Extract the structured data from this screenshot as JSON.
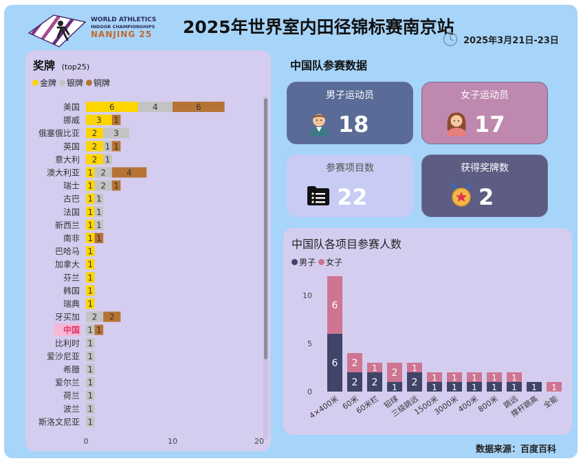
{
  "header": {
    "logo_line1": "WORLD ATHLETICS",
    "logo_line2": "INDOOR CHAMPIONSHIPS",
    "logo_line3": "NANJING 25",
    "title": "2025年世界室内田径锦标赛南京站",
    "date": "2025年3月21日-23日"
  },
  "medals_panel": {
    "title": "奖牌",
    "subtitle": "(top25)",
    "legend": [
      "金牌",
      "银牌",
      "铜牌"
    ]
  },
  "china_section": {
    "title": "中国队参赛数据"
  },
  "cards": {
    "male": {
      "label": "男子运动员",
      "value": "18"
    },
    "female": {
      "label": "女子运动员",
      "value": "17"
    },
    "events": {
      "label": "参赛项目数",
      "value": "22"
    },
    "medals": {
      "label": "获得奖牌数",
      "value": "2"
    }
  },
  "source": "数据来源：百度百科",
  "colors": {
    "gold": "#fdd600",
    "silver": "#c3c3c3",
    "bronze": "#b67434",
    "male": "#3f4468",
    "female": "#cd7592",
    "highlight": "#e2376b"
  },
  "chart_data": [
    {
      "type": "bar",
      "orientation": "horizontal",
      "stacked": true,
      "categories": [
        "美国",
        "挪威",
        "俄塞俄比亚",
        "英国",
        "意大利",
        "澳大利亚",
        "瑞士",
        "古巴",
        "法国",
        "新西兰",
        "南非",
        "巴哈马",
        "加拿大",
        "芬兰",
        "韩国",
        "瑞典",
        "牙买加",
        "中国",
        "比利时",
        "爱沙尼亚",
        "希腊",
        "爱尔兰",
        "荷兰",
        "波兰",
        "斯洛文尼亚"
      ],
      "series": [
        {
          "name": "金牌",
          "values": [
            6,
            3,
            2,
            2,
            2,
            1,
            1,
            1,
            1,
            1,
            1,
            1,
            1,
            1,
            1,
            1,
            0,
            0,
            0,
            0,
            0,
            0,
            0,
            0,
            0
          ]
        },
        {
          "name": "银牌",
          "values": [
            4,
            0,
            3,
            1,
            1,
            2,
            2,
            1,
            1,
            1,
            0,
            0,
            0,
            0,
            0,
            0,
            2,
            1,
            1,
            1,
            1,
            1,
            1,
            1,
            1
          ]
        },
        {
          "name": "铜牌",
          "values": [
            6,
            1,
            0,
            1,
            0,
            4,
            1,
            0,
            0,
            0,
            1,
            0,
            0,
            0,
            0,
            0,
            2,
            1,
            0,
            0,
            0,
            0,
            0,
            0,
            0
          ]
        }
      ],
      "highlight_category": "中国",
      "xlim": [
        0,
        20
      ],
      "xticks": [
        "0",
        "10",
        "20"
      ],
      "legend_position": "top-left"
    },
    {
      "type": "bar",
      "stacked": true,
      "title": "中国队各项目参赛人数",
      "categories": [
        "4×400米",
        "60米",
        "60米栏",
        "铅球",
        "三级跳远",
        "1500米",
        "3000米",
        "400米",
        "800米",
        "跳远",
        "撑杆跳高",
        "全能"
      ],
      "series": [
        {
          "name": "男子",
          "values": [
            6,
            2,
            2,
            1,
            2,
            1,
            1,
            1,
            1,
            1,
            1,
            0
          ]
        },
        {
          "name": "女子",
          "values": [
            6,
            2,
            1,
            2,
            1,
            1,
            1,
            1,
            1,
            1,
            0,
            1
          ]
        }
      ],
      "ylim": [
        0,
        12
      ],
      "yticks": [
        "0",
        "5",
        "10"
      ],
      "legend_position": "top-left"
    }
  ]
}
